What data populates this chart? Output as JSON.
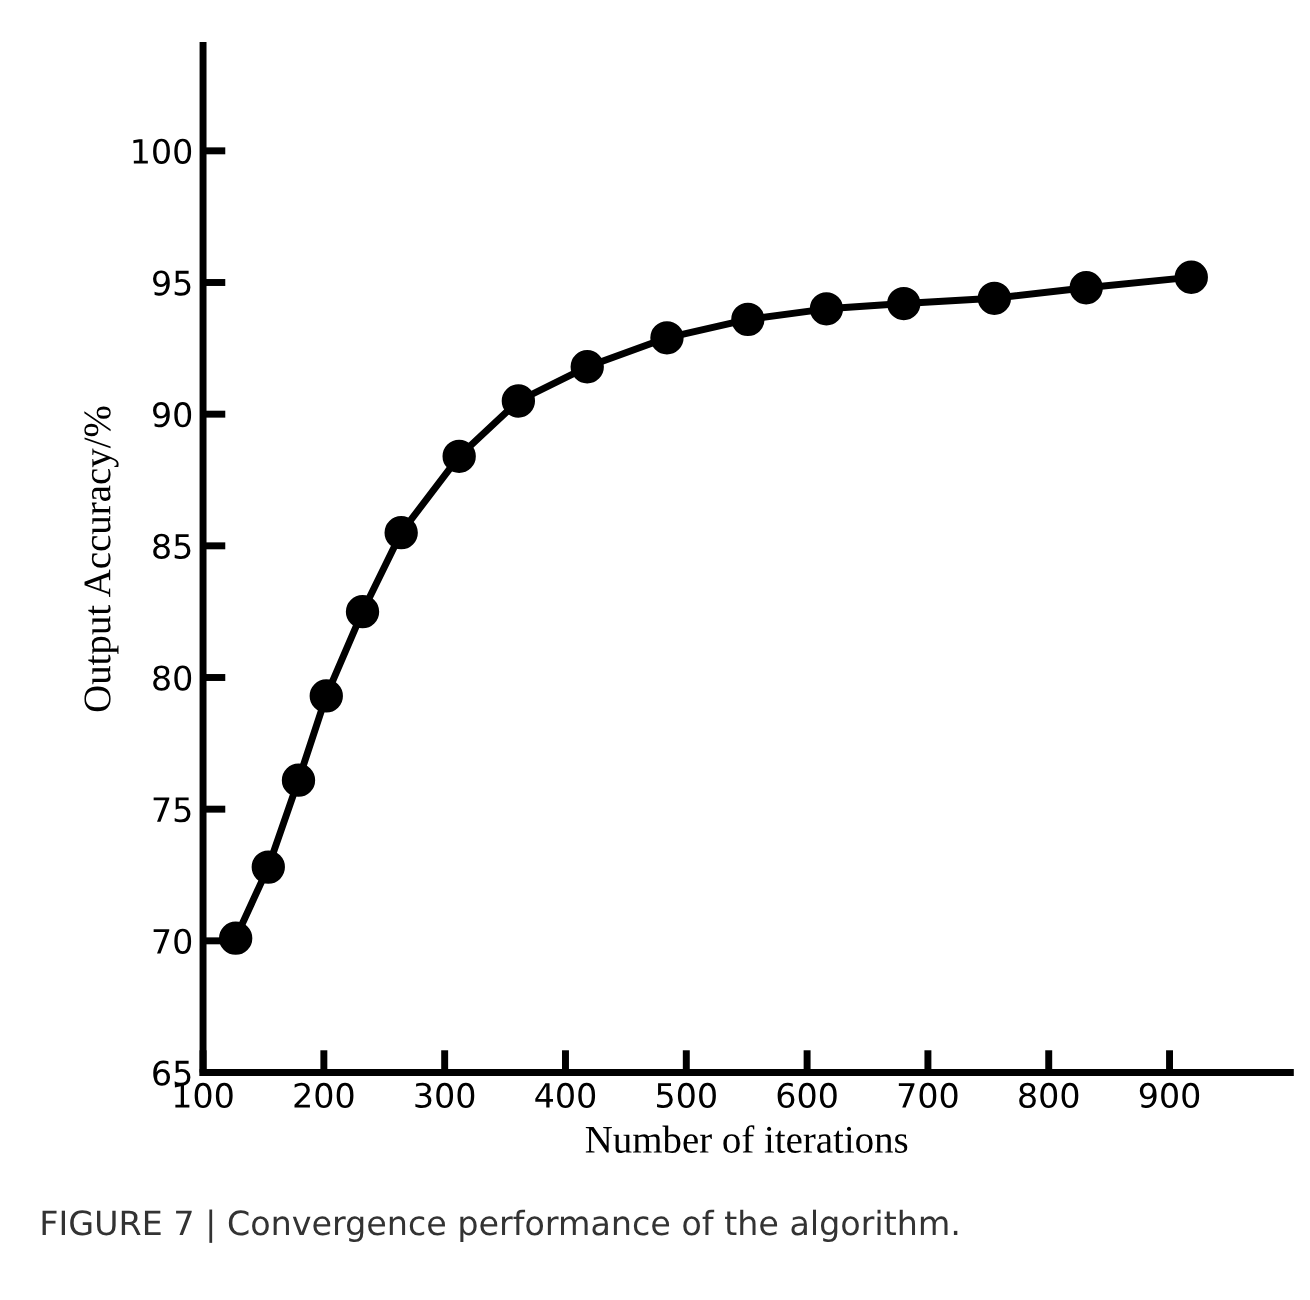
{
  "chart_data": {
    "type": "line",
    "xlabel": "Number of iterations",
    "ylabel": "Output Accuracy/%",
    "x": [
      127,
      154,
      179,
      202,
      232,
      264,
      312,
      361,
      418,
      484,
      551,
      616,
      680,
      755,
      831,
      918
    ],
    "series": [
      {
        "color": "#000000",
        "values": [
          70.1,
          72.8,
          76.1,
          79.3,
          82.5,
          85.5,
          88.4,
          90.5,
          91.8,
          92.9,
          93.6,
          94.0,
          94.2,
          94.4,
          94.8,
          95.2
        ]
      }
    ],
    "xlim": [
      100,
      1000
    ],
    "xticks": [
      100,
      200,
      300,
      400,
      500,
      600,
      700,
      800,
      900
    ],
    "ylim": [
      65,
      104
    ],
    "yticks": [
      65,
      70,
      75,
      80,
      85,
      90,
      95,
      100
    ],
    "grid": false,
    "legend": false,
    "marker": "circle",
    "line_style": "solid",
    "annotations": [
      "FIGURE 7 | Convergence performance of the algorithm."
    ]
  }
}
